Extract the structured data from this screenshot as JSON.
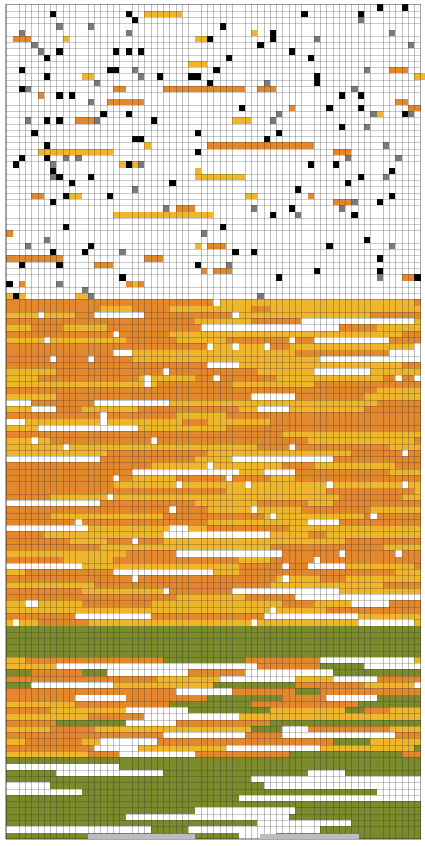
{
  "pattern": {
    "colors": [
      "#e3882d",
      "#efb52b",
      "#7b8b2b",
      "#000000",
      "#7a7a7a"
    ]
  }
}
